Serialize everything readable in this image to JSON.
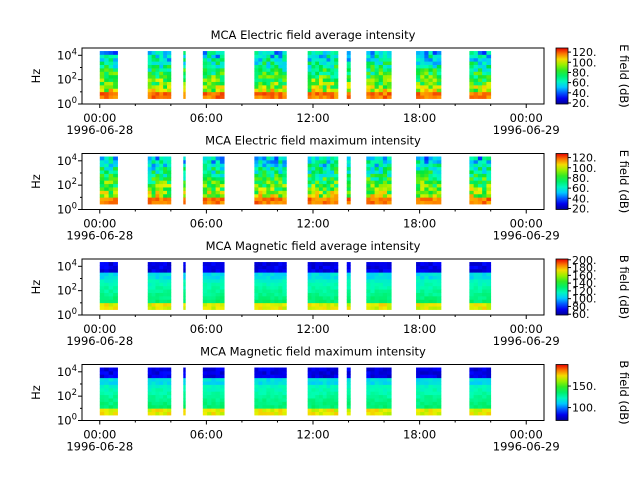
{
  "chart_data": [
    {
      "type": "heatmap",
      "title": "MCA  Electric field average intensity",
      "ylabel": "Hz",
      "y_ticks": [
        {
          "exp": "0"
        },
        {
          "exp": "2"
        },
        {
          "exp": "4"
        }
      ],
      "y_range_log10": [
        0,
        4.6
      ],
      "x_ticks": [
        {
          "time": "00:00",
          "date": "1996-06-28"
        },
        {
          "time": "06:00"
        },
        {
          "time": "12:00"
        },
        {
          "time": "18:00"
        },
        {
          "time": "00:00",
          "date": "1996-06-29"
        }
      ],
      "x_range_hours": [
        -1,
        25
      ],
      "colorbar": {
        "label": "E field (dB)",
        "ticks": [
          "20.",
          "40.",
          "60.",
          "80.",
          "100.",
          "120."
        ],
        "range": [
          18,
          128
        ]
      },
      "data_segments_hours": [
        [
          0.0,
          1.0
        ],
        [
          2.7,
          4.0
        ],
        [
          4.7,
          4.8
        ],
        [
          5.8,
          7.0
        ],
        [
          8.7,
          10.5
        ],
        [
          11.7,
          13.4
        ],
        [
          13.9,
          14.1
        ],
        [
          15.0,
          16.4
        ],
        [
          17.8,
          19.2
        ],
        [
          20.8,
          22.0
        ]
      ],
      "intensity_level": {
        "low": 30,
        "high": 125
      },
      "scheme": "electric"
    },
    {
      "type": "heatmap",
      "title": "MCA  Electric field maximum intensity",
      "ylabel": "Hz",
      "y_ticks": [
        {
          "exp": "0"
        },
        {
          "exp": "2"
        },
        {
          "exp": "4"
        }
      ],
      "y_range_log10": [
        0,
        4.6
      ],
      "x_ticks": [
        {
          "time": "00:00",
          "date": "1996-06-28"
        },
        {
          "time": "06:00"
        },
        {
          "time": "12:00"
        },
        {
          "time": "18:00"
        },
        {
          "time": "00:00",
          "date": "1996-06-29"
        }
      ],
      "x_range_hours": [
        -1,
        25
      ],
      "colorbar": {
        "label": "E field (dB)",
        "ticks": [
          "20.",
          "40.",
          "60.",
          "80.",
          "100.",
          "120."
        ],
        "range": [
          18,
          128
        ]
      },
      "data_segments_hours": [
        [
          0.0,
          1.0
        ],
        [
          2.7,
          4.0
        ],
        [
          4.7,
          4.8
        ],
        [
          5.8,
          7.0
        ],
        [
          8.7,
          10.5
        ],
        [
          11.7,
          13.4
        ],
        [
          13.9,
          14.1
        ],
        [
          15.0,
          16.4
        ],
        [
          17.8,
          19.2
        ],
        [
          20.8,
          22.0
        ]
      ],
      "intensity_level": {
        "low": 35,
        "high": 128
      },
      "scheme": "electric"
    },
    {
      "type": "heatmap",
      "title": "MCA  Magnetic field average intensity",
      "ylabel": "Hz",
      "y_ticks": [
        {
          "exp": "0"
        },
        {
          "exp": "2"
        },
        {
          "exp": "4"
        }
      ],
      "y_range_log10": [
        0,
        4.6
      ],
      "x_ticks": [
        {
          "time": "00:00",
          "date": "1996-06-28"
        },
        {
          "time": "06:00"
        },
        {
          "time": "12:00"
        },
        {
          "time": "18:00"
        },
        {
          "time": "00:00",
          "date": "1996-06-29"
        }
      ],
      "x_range_hours": [
        -1,
        25
      ],
      "colorbar": {
        "label": "B field (dB)",
        "ticks": [
          "60.",
          "80.",
          "100.",
          "120.",
          "140.",
          "160.",
          "180.",
          "200."
        ],
        "range": [
          58,
          202
        ]
      },
      "data_segments_hours": [
        [
          0.0,
          1.0
        ],
        [
          2.7,
          4.0
        ],
        [
          4.7,
          4.8
        ],
        [
          5.8,
          7.0
        ],
        [
          8.7,
          10.5
        ],
        [
          11.7,
          13.4
        ],
        [
          13.9,
          14.1
        ],
        [
          15.0,
          16.4
        ],
        [
          17.8,
          19.2
        ],
        [
          20.8,
          22.0
        ]
      ],
      "intensity_level": {
        "low": 70,
        "high": 160
      },
      "scheme": "magnetic"
    },
    {
      "type": "heatmap",
      "title": "MCA  Magnetic field maximum intensity",
      "ylabel": "Hz",
      "y_ticks": [
        {
          "exp": "0"
        },
        {
          "exp": "2"
        },
        {
          "exp": "4"
        }
      ],
      "y_range_log10": [
        0,
        4.6
      ],
      "x_ticks": [
        {
          "time": "00:00",
          "date": "1996-06-28"
        },
        {
          "time": "06:00"
        },
        {
          "time": "12:00"
        },
        {
          "time": "18:00"
        },
        {
          "time": "00:00",
          "date": "1996-06-29"
        }
      ],
      "x_range_hours": [
        -1,
        25
      ],
      "colorbar": {
        "label": "B field (dB)",
        "ticks": [
          "100.",
          "150."
        ],
        "range": [
          70,
          200
        ]
      },
      "data_segments_hours": [
        [
          0.0,
          1.0
        ],
        [
          2.7,
          4.0
        ],
        [
          4.7,
          4.8
        ],
        [
          5.8,
          7.0
        ],
        [
          8.7,
          10.5
        ],
        [
          11.7,
          13.4
        ],
        [
          13.9,
          14.1
        ],
        [
          15.0,
          16.4
        ],
        [
          17.8,
          19.2
        ],
        [
          20.8,
          22.0
        ]
      ],
      "intensity_level": {
        "low": 80,
        "high": 165
      },
      "scheme": "magnetic"
    }
  ]
}
